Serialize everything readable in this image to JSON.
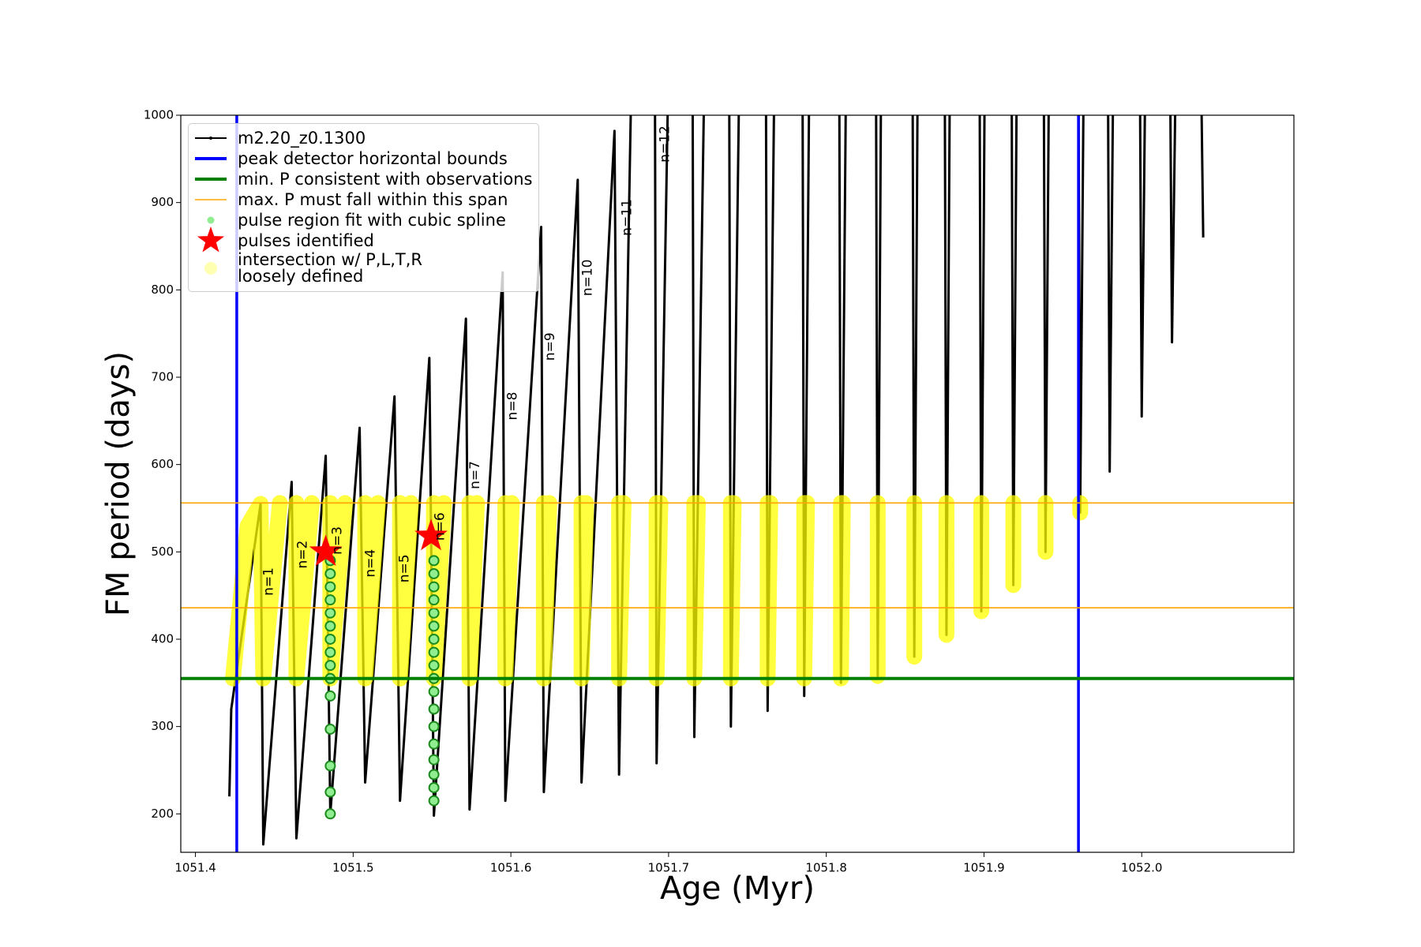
{
  "chart_data": {
    "type": "line",
    "x_label": "Age (Myr)",
    "y_label": "FM period (days)",
    "xlim": [
      1051.3907,
      1052.0965
    ],
    "ylim": [
      156,
      1000
    ],
    "xticks": [
      1051.4,
      1051.5,
      1051.6,
      1051.7,
      1051.8,
      1051.9,
      {
        "value": 1052,
        "label": "1052.0"
      }
    ],
    "yticks": [
      200,
      300,
      400,
      500,
      600,
      700,
      800,
      900,
      1000
    ],
    "legend": "upper left",
    "series": [
      {
        "name": "m2.20_z0.1300",
        "type": "line",
        "color": "#000000",
        "x": [
          1051.4215,
          1051.4227,
          1051.4413,
          1051.443,
          1051.461,
          1051.464,
          1051.4826,
          1051.4855,
          1051.5041,
          1051.5076,
          1051.5262,
          1051.5297,
          1051.5483,
          1051.5512,
          1051.5715,
          1051.5738,
          1051.5948,
          1051.5965,
          1051.6192,
          1051.6209,
          1051.6424,
          1051.6448,
          1051.6657,
          1051.6686,
          1051.676,
          null,
          1051.6914,
          1051.6924,
          1051.6994,
          null,
          1051.7153,
          1051.7163,
          1051.7223,
          null,
          1051.7385,
          1051.7395,
          1051.7445,
          null,
          1051.7618,
          1051.7628,
          1051.7668,
          null,
          1051.785,
          1051.786,
          1051.789,
          null,
          1051.8083,
          1051.8093,
          1051.8123,
          null,
          1051.8316,
          1051.8326,
          1051.8346,
          null,
          1051.8548,
          1051.8558,
          1051.8578,
          null,
          1051.8752,
          1051.8762,
          1051.8782,
          null,
          1051.8973,
          1051.8983,
          1051.9003,
          null,
          1051.9176,
          1051.9186,
          1051.9206,
          null,
          1051.938,
          1051.939,
          1051.941,
          null,
          1051.96,
          1051.961,
          1051.963,
          null,
          1051.9787,
          1051.9797,
          1051.9817,
          null,
          1051.999,
          1052.0,
          1052.002,
          null,
          1052.0182,
          1052.0192,
          1052.0212,
          null,
          1052.038,
          1052.039
        ],
        "values": [
          220,
          320,
          555,
          165,
          580,
          172,
          610,
          200,
          642,
          236,
          678,
          215,
          722,
          198,
          767,
          205,
          820,
          215,
          872,
          225,
          926,
          236,
          982,
          245,
          1000,
          null,
          1000,
          258,
          1000,
          null,
          1000,
          288,
          1000,
          null,
          1000,
          300,
          1000,
          null,
          1000,
          318,
          1000,
          null,
          1000,
          335,
          1000,
          null,
          1000,
          350,
          1000,
          null,
          1000,
          358,
          1000,
          null,
          1000,
          380,
          1000,
          null,
          1000,
          405,
          1000,
          null,
          1000,
          432,
          1000,
          null,
          1000,
          462,
          1000,
          null,
          1000,
          500,
          1000,
          null,
          1000,
          545,
          1000,
          null,
          1000,
          592,
          1000,
          null,
          1000,
          655,
          1000,
          null,
          1000,
          740,
          1000,
          null,
          1000,
          860
        ]
      },
      {
        "name": "peak detector horizontal bounds",
        "type": "vline",
        "color": "#0000ff",
        "x": [
          1051.4262,
          1051.9599
        ]
      },
      {
        "name": "min. P consistent with observations",
        "type": "hline",
        "color": "#008000",
        "values": [
          355
        ]
      },
      {
        "name": "max. P must fall within this span",
        "type": "hline",
        "color": "#ffa500",
        "values": [
          436,
          556
        ]
      },
      {
        "name": "pulse region fit with cubic spline",
        "type": "scatter",
        "color": "#90ee90",
        "x": [
          1051.4855,
          1051.4855,
          1051.4855,
          1051.4855,
          1051.4855,
          1051.4855,
          1051.4855,
          1051.4855,
          1051.4855,
          1051.4855,
          1051.4855,
          1051.4855,
          1051.4855,
          1051.4855,
          1051.4855,
          1051.5512,
          1051.5512,
          1051.5512,
          1051.5512,
          1051.5512,
          1051.5512,
          1051.5512,
          1051.5512,
          1051.5512,
          1051.5512,
          1051.5512,
          1051.5512,
          1051.5512,
          1051.5512,
          1051.5512,
          1051.5512,
          1051.5512,
          1051.5512
        ],
        "values": [
          200,
          225,
          255,
          297,
          335,
          355,
          370,
          385,
          400,
          415,
          430,
          445,
          460,
          475,
          490,
          215,
          230,
          245,
          262,
          280,
          300,
          320,
          340,
          355,
          370,
          385,
          400,
          415,
          430,
          445,
          460,
          475,
          490
        ]
      },
      {
        "name": "pulses identified",
        "type": "star",
        "color": "#ff0000",
        "x": [
          1051.4826,
          1051.5494
        ],
        "values": [
          500,
          518
        ]
      },
      {
        "name": "intersection w/ P,L,T,R\nloosely defined",
        "type": "band",
        "color": "#ffff00",
        "x": [
          1051.4238,
          1051.4331,
          1051.4413,
          1051.443,
          1051.4535,
          null,
          1051.464,
          1051.464,
          1051.4738,
          null,
          1051.4855,
          1051.4855,
          1051.4948,
          null,
          1051.5076,
          1051.5076,
          1051.5157,
          null,
          1051.5297,
          1051.5297,
          1051.5366,
          null,
          1051.5512,
          1051.5512,
          1051.5576,
          null,
          1051.5738,
          1051.5738,
          1051.5785,
          null,
          1051.5965,
          1051.5965,
          1051.6006,
          null,
          1051.6209,
          1051.6209,
          1051.6244,
          null,
          1051.6448,
          1051.6448,
          1051.6477,
          null,
          1051.6686,
          1051.6686,
          1051.6715,
          null,
          1051.6924,
          1051.6924,
          1051.6948,
          null,
          1051.7163,
          1051.7163,
          1051.7186,
          null,
          1051.7395,
          1051.7395,
          1051.7413,
          null,
          1051.7628,
          1051.7628,
          1051.7645,
          null,
          1051.786,
          1051.786,
          1051.7878,
          null,
          1051.8093,
          1051.8093,
          1051.8105,
          null,
          1051.8326,
          1051.8326,
          null,
          1051.8558,
          1051.8558,
          null,
          1051.8762,
          1051.8762,
          null,
          1051.8983,
          1051.8983,
          null,
          1051.9186,
          1051.9186,
          null,
          1051.939,
          1051.939,
          null,
          1051.961,
          1051.961
        ],
        "values": [
          355,
          530,
          555,
          355,
          556,
          null,
          556,
          355,
          556,
          null,
          556,
          355,
          556,
          null,
          556,
          355,
          556,
          null,
          556,
          355,
          556,
          null,
          556,
          355,
          556,
          null,
          556,
          355,
          556,
          null,
          556,
          355,
          556,
          null,
          556,
          355,
          556,
          null,
          556,
          355,
          556,
          null,
          556,
          355,
          556,
          null,
          556,
          355,
          556,
          null,
          556,
          355,
          556,
          null,
          556,
          355,
          556,
          null,
          556,
          355,
          556,
          null,
          556,
          355,
          556,
          null,
          556,
          355,
          556,
          null,
          556,
          358,
          null,
          556,
          380,
          null,
          556,
          405,
          null,
          556,
          432,
          null,
          556,
          462,
          null,
          556,
          500,
          null,
          556,
          545
        ]
      }
    ],
    "annotations": [
      {
        "text": "n=1",
        "x": 1051.4465,
        "y": 466
      },
      {
        "text": "n=2",
        "x": 1051.468,
        "y": 497
      },
      {
        "text": "n=3",
        "x": 1051.4901,
        "y": 513
      },
      {
        "text": "n=4",
        "x": 1051.511,
        "y": 487
      },
      {
        "text": "n=5",
        "x": 1051.5326,
        "y": 481
      },
      {
        "text": "n=6",
        "x": 1051.5552,
        "y": 529
      },
      {
        "text": "n=7",
        "x": 1051.5773,
        "y": 588
      },
      {
        "text": "n=8",
        "x": 1051.6012,
        "y": 667
      },
      {
        "text": "n=9",
        "x": 1051.625,
        "y": 735
      },
      {
        "text": "n=10",
        "x": 1051.6488,
        "y": 814
      },
      {
        "text": "n=11",
        "x": 1051.6738,
        "y": 883
      },
      {
        "text": "n=12",
        "x": 1051.6977,
        "y": 967
      }
    ]
  }
}
